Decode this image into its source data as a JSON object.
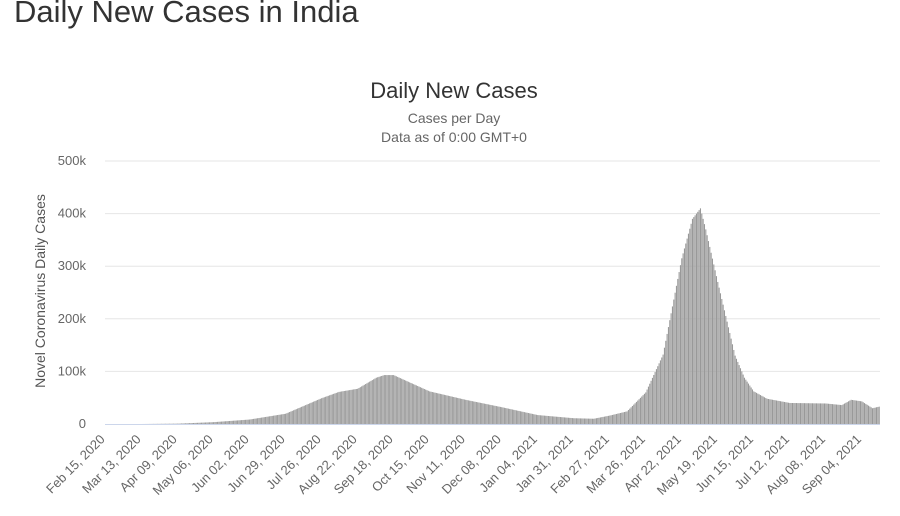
{
  "page": {
    "title": "Daily New Cases in India"
  },
  "chart_data": {
    "type": "bar",
    "title": "Daily New Cases",
    "subtitle_lines": [
      "Cases per Day",
      "Data as of 0:00 GMT+0"
    ],
    "ylabel": "Novel Coronavirus Daily Cases",
    "xlabel": "",
    "ylim": [
      0,
      500000
    ],
    "y_ticks": [
      0,
      100000,
      200000,
      300000,
      400000,
      500000
    ],
    "y_tick_labels": [
      "0",
      "100k",
      "200k",
      "300k",
      "400k",
      "500k"
    ],
    "grid": true,
    "legend": "none",
    "x_range": [
      "2020-02-15",
      "2021-09-17"
    ],
    "x_tick_labels": [
      "Feb 15, 2020",
      "Mar 13, 2020",
      "Apr 09, 2020",
      "May 06, 2020",
      "Jun 02, 2020",
      "Jun 29, 2020",
      "Jul 26, 2020",
      "Aug 22, 2020",
      "Sep 18, 2020",
      "Oct 15, 2020",
      "Nov 11, 2020",
      "Dec 08, 2020",
      "Jan 04, 2021",
      "Jan 31, 2021",
      "Feb 27, 2021",
      "Mar 26, 2021",
      "Apr 22, 2021",
      "May 19, 2021",
      "Jun 15, 2021",
      "Jul 12, 2021",
      "Aug 08, 2021",
      "Sep 04, 2021"
    ],
    "bar_color": "#999999",
    "series": [
      {
        "x": [
          "2020-02-15",
          "2020-03-13",
          "2020-04-09",
          "2020-05-06",
          "2020-06-02",
          "2020-06-29",
          "2020-07-26",
          "2020-08-08",
          "2020-08-22",
          "2020-09-05",
          "2020-09-11",
          "2020-09-18",
          "2020-10-01",
          "2020-10-15",
          "2020-11-11",
          "2020-12-08",
          "2021-01-04",
          "2021-01-31",
          "2021-02-15",
          "2021-02-27",
          "2021-03-12",
          "2021-03-26",
          "2021-04-08",
          "2021-04-22",
          "2021-04-30",
          "2021-05-06",
          "2021-05-10",
          "2021-05-19",
          "2021-06-01",
          "2021-06-08",
          "2021-06-15",
          "2021-06-25",
          "2021-07-12",
          "2021-08-08",
          "2021-08-20",
          "2021-08-27",
          "2021-09-04",
          "2021-09-12",
          "2021-09-17"
        ],
        "values": [
          0,
          10,
          700,
          3500,
          8500,
          19500,
          49000,
          61000,
          67000,
          88000,
          93000,
          93000,
          78000,
          62000,
          46000,
          32000,
          17000,
          11000,
          10000,
          16000,
          24000,
          60000,
          132000,
          315000,
          390000,
          410000,
          370000,
          270000,
          130000,
          88000,
          62000,
          48000,
          40000,
          39000,
          36000,
          46000,
          43000,
          30000,
          33000
        ]
      }
    ]
  }
}
